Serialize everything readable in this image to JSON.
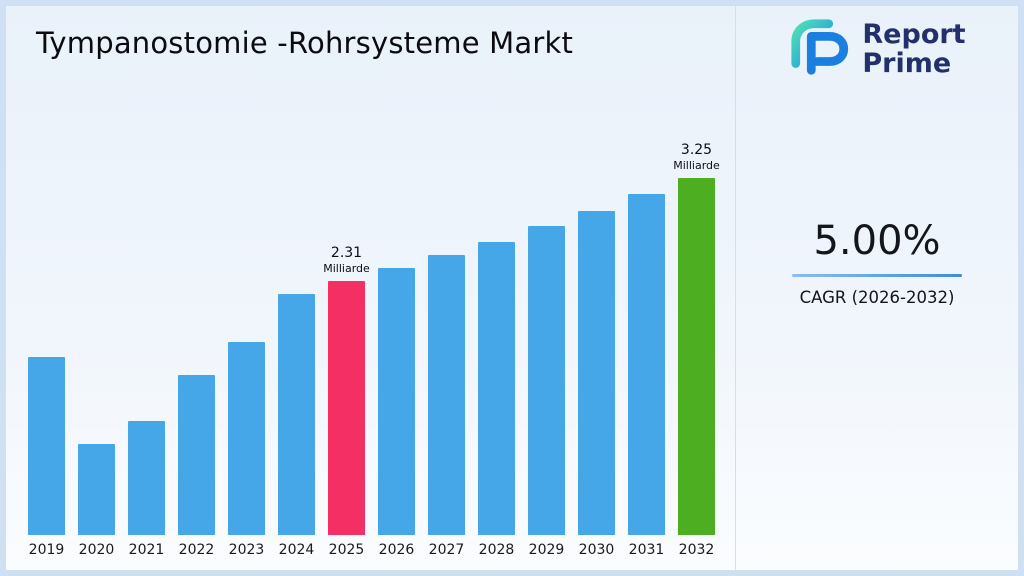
{
  "title": "Tympanostomie -Rohrsysteme Markt",
  "logo": {
    "line1": "Report",
    "line2": "Prime"
  },
  "cagr": {
    "value": "5.00%",
    "label": "CAGR (2026-2032)"
  },
  "colors": {
    "bar_default": "#45a6e8",
    "bar_highlight": "#f42f63",
    "bar_final": "#4cae20",
    "accent_line": "#3c8cdd",
    "background": "#eef3fb",
    "frame_border": "#cfe0f3",
    "logo_navy": "#23306b"
  },
  "chart_data": {
    "type": "bar",
    "title": "Tympanostomie -Rohrsysteme Markt",
    "categories": [
      "2019",
      "2020",
      "2021",
      "2022",
      "2023",
      "2024",
      "2025",
      "2026",
      "2027",
      "2028",
      "2029",
      "2030",
      "2031",
      "2032"
    ],
    "values": [
      1.62,
      0.83,
      1.04,
      1.46,
      1.76,
      2.19,
      2.31,
      2.43,
      2.55,
      2.67,
      2.81,
      2.95,
      3.1,
      3.25
    ],
    "unit": "Milliarde",
    "xlabel": "",
    "ylabel": "",
    "ylim": [
      0,
      3.5
    ],
    "grid": false,
    "legend": false,
    "default_bar_color": "#45a6e8",
    "highlighted": [
      {
        "category": "2025",
        "label": "2.31",
        "unit": "Milliarde",
        "color": "#f42f63"
      },
      {
        "category": "2032",
        "label": "3.25",
        "unit": "Milliarde",
        "color": "#4cae20"
      }
    ]
  }
}
